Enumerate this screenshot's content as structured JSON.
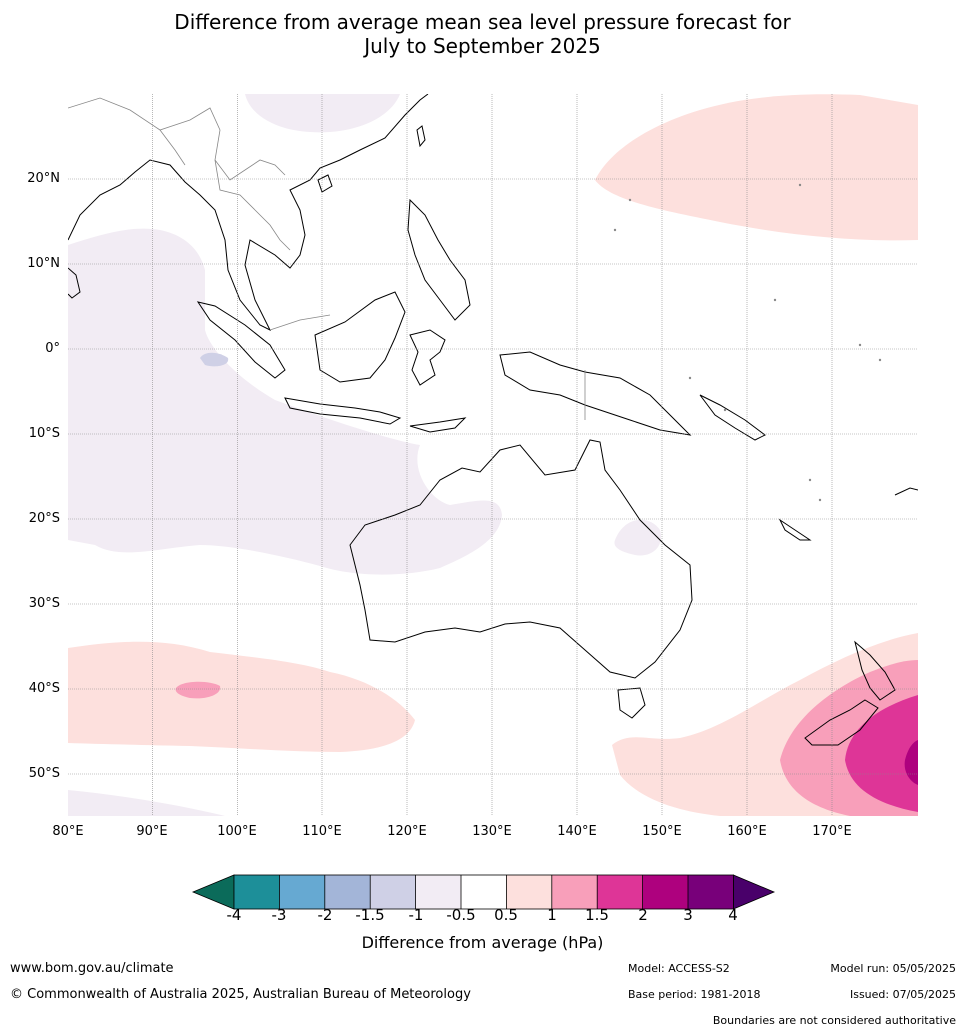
{
  "title_line1": "Difference from average mean sea level pressure forecast for",
  "title_line2": "July to September 2025",
  "map": {
    "lat_labels": [
      "20°N",
      "10°N",
      "0°",
      "10°S",
      "20°S",
      "30°S",
      "40°S",
      "50°S"
    ],
    "lon_labels": [
      "80°E",
      "90°E",
      "100°E",
      "110°E",
      "120°E",
      "130°E",
      "140°E",
      "150°E",
      "160°E",
      "170°E"
    ]
  },
  "colorbar": {
    "colors": [
      "#0b6b5a",
      "#1d8f99",
      "#66a9d2",
      "#a3b5d8",
      "#cfd0e6",
      "#f2ecf4",
      "#ffffff",
      "#fde0dd",
      "#f89fba",
      "#de3597",
      "#ae017e",
      "#78007a",
      "#49006a"
    ],
    "ticks": [
      "-4",
      "-3",
      "-2",
      "-1.5",
      "-1",
      "-0.5",
      "0.5",
      "1",
      "1.5",
      "2",
      "3",
      "4"
    ],
    "title": "Difference from average (hPa)"
  },
  "footer": {
    "website": "www.bom.gov.au/climate",
    "copyright": "© Commonwealth of Australia 2025, Australian Bureau of Meteorology",
    "model": "Model: ACCESS-S2",
    "base_period": "Base period: 1981-2018",
    "model_run": "Model run: 05/05/2025",
    "issued": "Issued: 07/05/2025",
    "disclaimer": "Boundaries are not considered authoritative"
  }
}
